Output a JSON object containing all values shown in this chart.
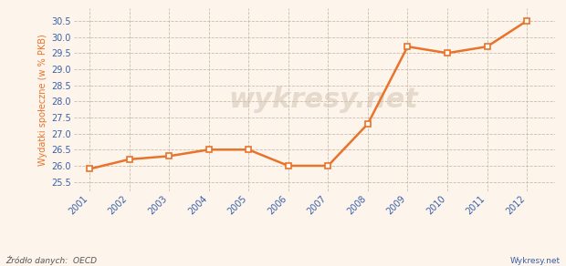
{
  "years": [
    2001,
    2002,
    2003,
    2004,
    2005,
    2006,
    2007,
    2008,
    2009,
    2010,
    2011,
    2012
  ],
  "values": [
    25.9,
    26.2,
    26.3,
    26.5,
    26.5,
    26.0,
    26.0,
    27.3,
    29.7,
    29.5,
    29.7,
    30.5
  ],
  "line_color": "#E8732A",
  "marker_color": "#E8732A",
  "marker_face": "#FFF8F0",
  "ylabel": "Wydatki społeczne (w % PKB)",
  "ylabel_color": "#E8732A",
  "source_text": "Źródło danych:  OECD",
  "watermark": "wykresy.net",
  "site_credit": "Wykresy.net",
  "ylim_min": 25.2,
  "ylim_max": 30.9,
  "bg_color": "#FDF5EC",
  "plot_bg_color": "#FDF5EC",
  "grid_color": "#CCBBAA",
  "tick_color": "#3A5FA8",
  "xlabel_color": "#3A5FA8",
  "yticks": [
    25.5,
    26.0,
    26.5,
    27.0,
    27.5,
    28.0,
    28.5,
    29.0,
    29.5,
    30.0,
    30.5
  ]
}
